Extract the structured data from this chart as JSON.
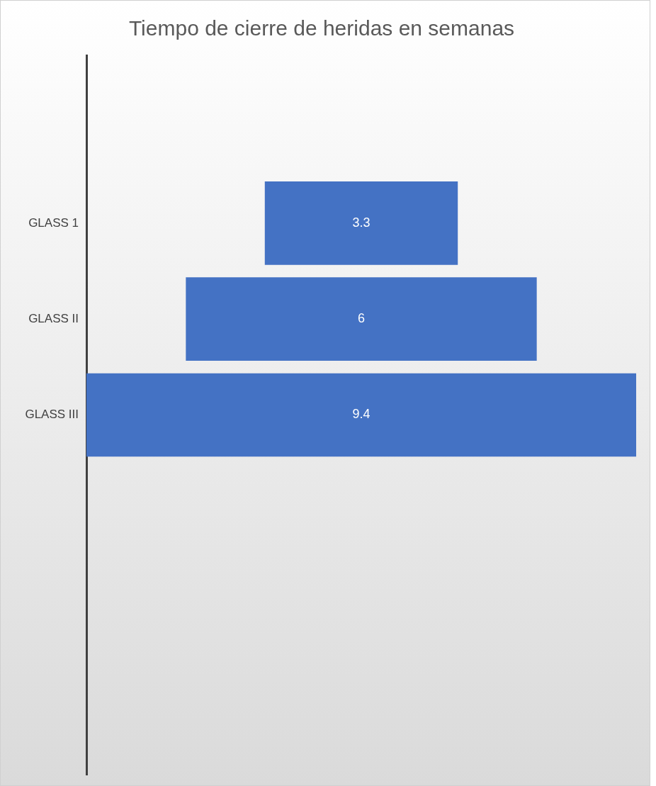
{
  "chart_data": {
    "type": "other",
    "title": "Tiempo de cierre de heridas en semanas",
    "categories": [
      "GLASS 1",
      "GLASS II",
      "GLASS III"
    ],
    "values": [
      3.3,
      6,
      9.4
    ],
    "color": "#4472c4",
    "data_labels": true
  }
}
